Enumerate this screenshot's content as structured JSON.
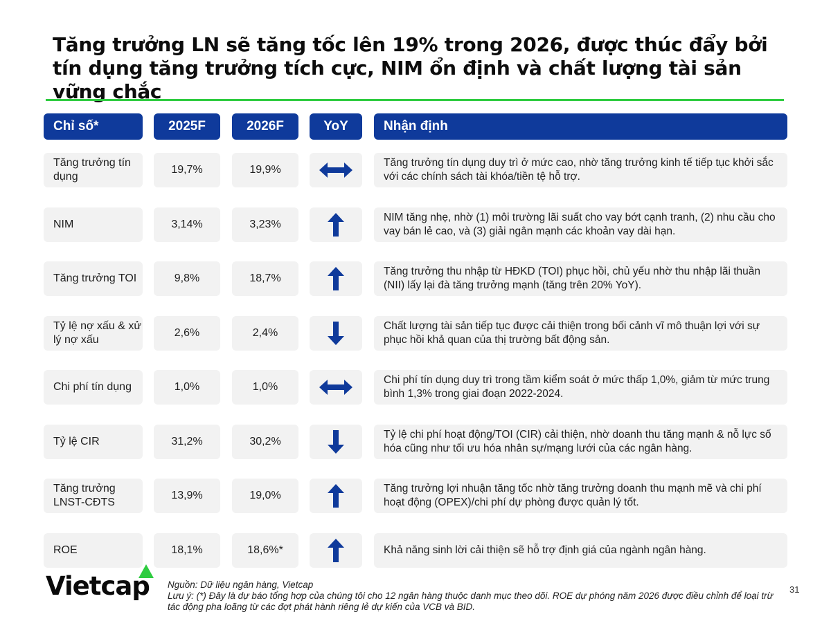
{
  "title": "Tăng trưởng LN sẽ tăng tốc lên 19% trong 2026, được thúc đẩy bởi tín dụng tăng trưởng tích cực, NIM ổn định và chất lượng tài sản vững chắc",
  "colors": {
    "header_bg": "#0f3a9b",
    "accent_green": "#2ecc40",
    "cell_bg": "#f2f2f2",
    "arrow": "#0f3a9b"
  },
  "table": {
    "headers": {
      "metric": "Chỉ số*",
      "y2025": "2025F",
      "y2026": "2026F",
      "yoy": "YoY",
      "note": "Nhận định"
    },
    "rows": [
      {
        "metric": "Tăng trưởng tín dụng",
        "y2025": "19,7%",
        "y2026": "19,9%",
        "yoy": "flat",
        "note": "Tăng trưởng tín dụng duy trì ở mức cao, nhờ tăng trưởng kinh tế tiếp tục khởi sắc với các chính sách tài khóa/tiền tệ hỗ trợ."
      },
      {
        "metric": "NIM",
        "y2025": "3,14%",
        "y2026": "3,23%",
        "yoy": "up",
        "note": "NIM tăng nhẹ, nhờ (1) môi trường lãi suất cho vay bớt cạnh tranh, (2) nhu cầu cho vay bán lẻ cao, và (3) giải ngân mạnh các khoản vay dài hạn."
      },
      {
        "metric": "Tăng trưởng TOI",
        "y2025": "9,8%",
        "y2026": "18,7%",
        "yoy": "up",
        "note": "Tăng trưởng thu nhập từ HĐKD (TOI) phục hồi, chủ yếu nhờ thu nhập lãi thuần (NII) lấy lại đà tăng trưởng mạnh (tăng trên 20% YoY)."
      },
      {
        "metric": "Tỷ lệ nợ xấu & xử lý nợ xấu",
        "y2025": "2,6%",
        "y2026": "2,4%",
        "yoy": "down",
        "note": "Chất lượng tài sản tiếp tục được cải thiện trong bối cảnh vĩ mô thuận lợi với sự phục hồi khả quan của thị trường bất động sản."
      },
      {
        "metric": "Chi phí tín dụng",
        "y2025": "1,0%",
        "y2026": "1,0%",
        "yoy": "flat",
        "note": "Chi phí tín dụng duy trì trong tầm kiểm soát ở mức thấp 1,0%, giảm từ mức trung bình 1,3% trong giai đoạn 2022-2024."
      },
      {
        "metric": "Tỷ lệ CIR",
        "y2025": "31,2%",
        "y2026": "30,2%",
        "yoy": "down",
        "note": "Tỷ lệ chi phí hoạt động/TOI (CIR) cải thiện, nhờ doanh thu tăng mạnh & nỗ lực số hóa cũng như tối ưu hóa nhân sự/mạng lưới của các ngân hàng."
      },
      {
        "metric": "Tăng trưởng LNST-CĐTS",
        "y2025": "13,9%",
        "y2026": "19,0%",
        "yoy": "up",
        "note": "Tăng trưởng lợi nhuận tăng tốc nhờ tăng trưởng doanh thu mạnh mẽ và chi phí hoạt động (OPEX)/chi phí dự phòng được quản lý tốt."
      },
      {
        "metric": "ROE",
        "y2025": "18,1%",
        "y2026": "18,6%*",
        "yoy": "up",
        "note": "Khả năng sinh lời cải thiện sẽ hỗ trợ định giá của ngành ngân hàng."
      }
    ]
  },
  "logo": "Vietcap",
  "footnote": {
    "source": "Nguồn: Dữ liệu ngân hàng, Vietcap",
    "note": "Lưu ý: (*) Đây là dự báo tổng hợp của chúng tôi cho 12 ngân hàng thuộc danh mục theo dõi. ROE dự phóng năm 2026 được điều chỉnh để loại trừ tác động pha loãng từ các đợt phát hành riêng lẻ dự kiến của VCB và BID."
  },
  "page_number": "31"
}
